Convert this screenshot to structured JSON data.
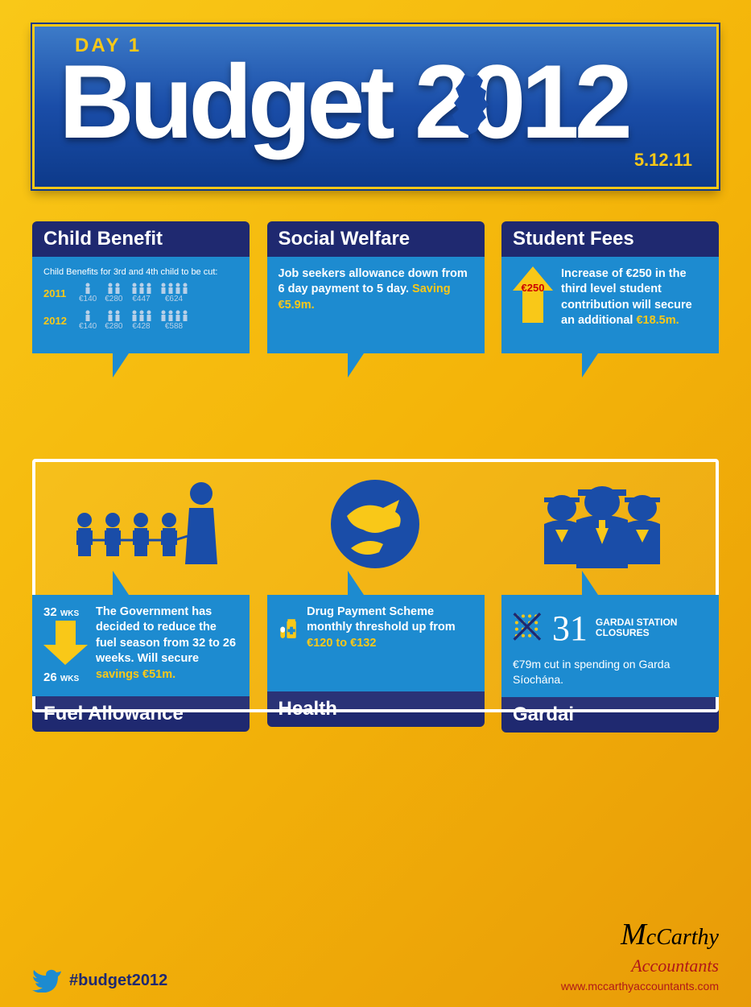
{
  "colors": {
    "yellow": "#f9c818",
    "blue_dark": "#1f2970",
    "blue_mid": "#1d8bd0",
    "blue_icon": "#1a4da8",
    "red": "#b01818"
  },
  "header": {
    "day_label": "DAY 1",
    "title": "Budget 2012",
    "date": "5.12.11"
  },
  "cards": {
    "child_benefit": {
      "title": "Child Benefit",
      "subtitle": "Child Benefits for 3rd and 4th child to be cut:",
      "rows": [
        {
          "year": "2011",
          "amounts": [
            "€140",
            "€280",
            "€447",
            "€624"
          ],
          "counts": [
            1,
            2,
            3,
            4
          ]
        },
        {
          "year": "2012",
          "amounts": [
            "€140",
            "€280",
            "€428",
            "€588"
          ],
          "counts": [
            1,
            2,
            3,
            4
          ]
        }
      ]
    },
    "social_welfare": {
      "title": "Social Welfare",
      "text_pre": "Job seekers allowance down from 6 day payment to 5 day. ",
      "saving": "Saving €5.9m."
    },
    "student_fees": {
      "title": "Student Fees",
      "arrow_label": "€250",
      "text_pre": "Increase of €250 in the third level student contribution will secure an additional ",
      "amount": "€18.5m."
    },
    "fuel": {
      "title": "Fuel Allowance",
      "from_wks": "32",
      "to_wks": "26",
      "wks_suffix": "WKS",
      "text_pre": "The Government has decided to reduce the fuel season from 32 to 26 weeks. Will secure ",
      "saving": "savings €51m."
    },
    "health": {
      "title": "Health",
      "text_pre": "Drug Payment Scheme monthly threshold up from ",
      "amount": "€120 to €132"
    },
    "gardai": {
      "title": "Gardai",
      "number": "31",
      "closures_label": "GARDAI STATION CLOSURES",
      "text": "€79m cut in spending on Garda Síochána."
    }
  },
  "footer": {
    "hashtag": "#budget2012",
    "logo_mc": "M",
    "logo_carthy": "cCarthy",
    "logo_acc": "Accountants",
    "url": "www.mccarthyaccountants.com"
  }
}
